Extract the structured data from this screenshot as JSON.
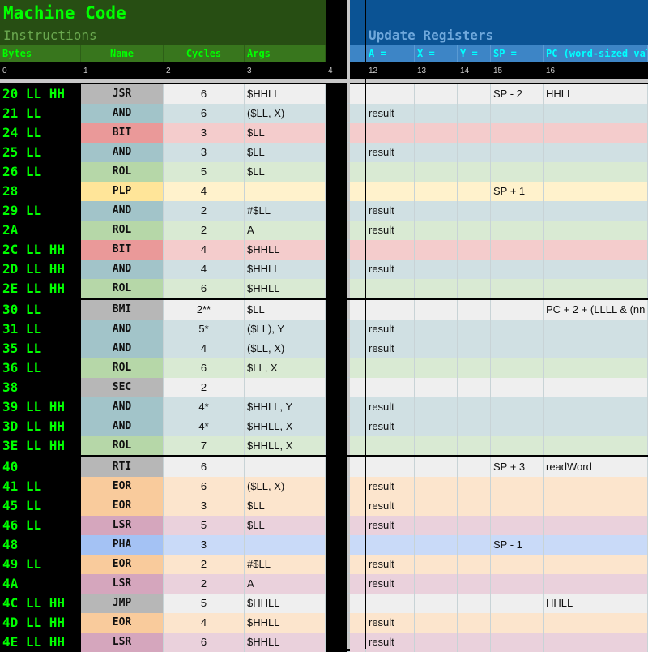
{
  "header": {
    "title": "Machine Code",
    "subtitle_left": "Instructions",
    "subtitle_right": "Update Registers",
    "left_columns": [
      "Bytes",
      "Name",
      "Cycles",
      "Args"
    ],
    "right_columns": [
      "A =",
      "X =",
      "Y =",
      "SP =",
      "PC (word-sized value)"
    ],
    "column_indices": [
      "0",
      "1",
      "2",
      "3",
      "4",
      "12",
      "13",
      "14",
      "15",
      "16"
    ]
  },
  "colors": {
    "JSR": [
      "#b7b7b7",
      "#efefef"
    ],
    "AND": [
      "#a2c4c9",
      "#d0e0e3"
    ],
    "BIT": [
      "#ea9999",
      "#f4cccc"
    ],
    "ROL": [
      "#b6d7a8",
      "#d9ead3"
    ],
    "PLP": [
      "#ffe599",
      "#fff2cc"
    ],
    "BMI": [
      "#b7b7b7",
      "#efefef"
    ],
    "SEC": [
      "#b7b7b7",
      "#efefef"
    ],
    "RTI": [
      "#b7b7b7",
      "#efefef"
    ],
    "EOR": [
      "#f9cb9c",
      "#fce5cd"
    ],
    "LSR": [
      "#d5a6bd",
      "#ead1dc"
    ],
    "PHA": [
      "#a4c2f4",
      "#c9daf8"
    ],
    "JMP": [
      "#b7b7b7",
      "#efefef"
    ]
  },
  "rows": [
    {
      "bytes": "20 LL HH",
      "name": "JSR",
      "cycles": "6",
      "args": "$HHLL",
      "a": "",
      "sp": "SP - 2",
      "pc": "HHLL"
    },
    {
      "bytes": "21 LL",
      "name": "AND",
      "cycles": "6",
      "args": "($LL, X)",
      "a": "result",
      "sp": "",
      "pc": ""
    },
    {
      "bytes": "24 LL",
      "name": "BIT",
      "cycles": "3",
      "args": "$LL",
      "a": "",
      "sp": "",
      "pc": ""
    },
    {
      "bytes": "25 LL",
      "name": "AND",
      "cycles": "3",
      "args": "$LL",
      "a": "result",
      "sp": "",
      "pc": ""
    },
    {
      "bytes": "26 LL",
      "name": "ROL",
      "cycles": "5",
      "args": "$LL",
      "a": "",
      "sp": "",
      "pc": ""
    },
    {
      "bytes": "28",
      "name": "PLP",
      "cycles": "4",
      "args": "",
      "a": "",
      "sp": "SP + 1",
      "pc": ""
    },
    {
      "bytes": "29 LL",
      "name": "AND",
      "cycles": "2",
      "args": "#$LL",
      "a": "result",
      "sp": "",
      "pc": ""
    },
    {
      "bytes": "2A",
      "name": "ROL",
      "cycles": "2",
      "args": "A",
      "a": "result",
      "sp": "",
      "pc": ""
    },
    {
      "bytes": "2C LL HH",
      "name": "BIT",
      "cycles": "4",
      "args": "$HHLL",
      "a": "",
      "sp": "",
      "pc": ""
    },
    {
      "bytes": "2D LL HH",
      "name": "AND",
      "cycles": "4",
      "args": "$HHLL",
      "a": "result",
      "sp": "",
      "pc": ""
    },
    {
      "bytes": "2E LL HH",
      "name": "ROL",
      "cycles": "6",
      "args": "$HHLL",
      "a": "",
      "sp": "",
      "pc": ""
    },
    {
      "bytes": "30 LL",
      "name": "BMI",
      "cycles": "2**",
      "args": "$LL",
      "a": "",
      "sp": "",
      "pc": "PC + 2 + (LLLL & (nn"
    },
    {
      "bytes": "31 LL",
      "name": "AND",
      "cycles": "5*",
      "args": "($LL), Y",
      "a": "result",
      "sp": "",
      "pc": ""
    },
    {
      "bytes": "35 LL",
      "name": "AND",
      "cycles": "4",
      "args": "($LL, X)",
      "a": "result",
      "sp": "",
      "pc": ""
    },
    {
      "bytes": "36 LL",
      "name": "ROL",
      "cycles": "6",
      "args": "$LL, X",
      "a": "",
      "sp": "",
      "pc": ""
    },
    {
      "bytes": "38",
      "name": "SEC",
      "cycles": "2",
      "args": "",
      "a": "",
      "sp": "",
      "pc": ""
    },
    {
      "bytes": "39 LL HH",
      "name": "AND",
      "cycles": "4*",
      "args": "$HHLL, Y",
      "a": "result",
      "sp": "",
      "pc": ""
    },
    {
      "bytes": "3D LL HH",
      "name": "AND",
      "cycles": "4*",
      "args": "$HHLL, X",
      "a": "result",
      "sp": "",
      "pc": ""
    },
    {
      "bytes": "3E LL HH",
      "name": "ROL",
      "cycles": "7",
      "args": "$HHLL, X",
      "a": "",
      "sp": "",
      "pc": ""
    },
    {
      "bytes": "40",
      "name": "RTI",
      "cycles": "6",
      "args": "",
      "a": "",
      "sp": "SP + 3",
      "pc": "readWord"
    },
    {
      "bytes": "41 LL",
      "name": "EOR",
      "cycles": "6",
      "args": "($LL, X)",
      "a": "result",
      "sp": "",
      "pc": ""
    },
    {
      "bytes": "45 LL",
      "name": "EOR",
      "cycles": "3",
      "args": "$LL",
      "a": "result",
      "sp": "",
      "pc": ""
    },
    {
      "bytes": "46 LL",
      "name": "LSR",
      "cycles": "5",
      "args": "$LL",
      "a": "result",
      "sp": "",
      "pc": ""
    },
    {
      "bytes": "48",
      "name": "PHA",
      "cycles": "3",
      "args": "",
      "a": "",
      "sp": "SP - 1",
      "pc": ""
    },
    {
      "bytes": "49 LL",
      "name": "EOR",
      "cycles": "2",
      "args": "#$LL",
      "a": "result",
      "sp": "",
      "pc": ""
    },
    {
      "bytes": "4A",
      "name": "LSR",
      "cycles": "2",
      "args": "A",
      "a": "result",
      "sp": "",
      "pc": ""
    },
    {
      "bytes": "4C LL HH",
      "name": "JMP",
      "cycles": "5",
      "args": "$HHLL",
      "a": "",
      "sp": "",
      "pc": "HHLL"
    },
    {
      "bytes": "4D LL HH",
      "name": "EOR",
      "cycles": "4",
      "args": "$HHLL",
      "a": "result",
      "sp": "",
      "pc": ""
    },
    {
      "bytes": "4E LL HH",
      "name": "LSR",
      "cycles": "6",
      "args": "$HHLL",
      "a": "result",
      "sp": "",
      "pc": ""
    }
  ]
}
